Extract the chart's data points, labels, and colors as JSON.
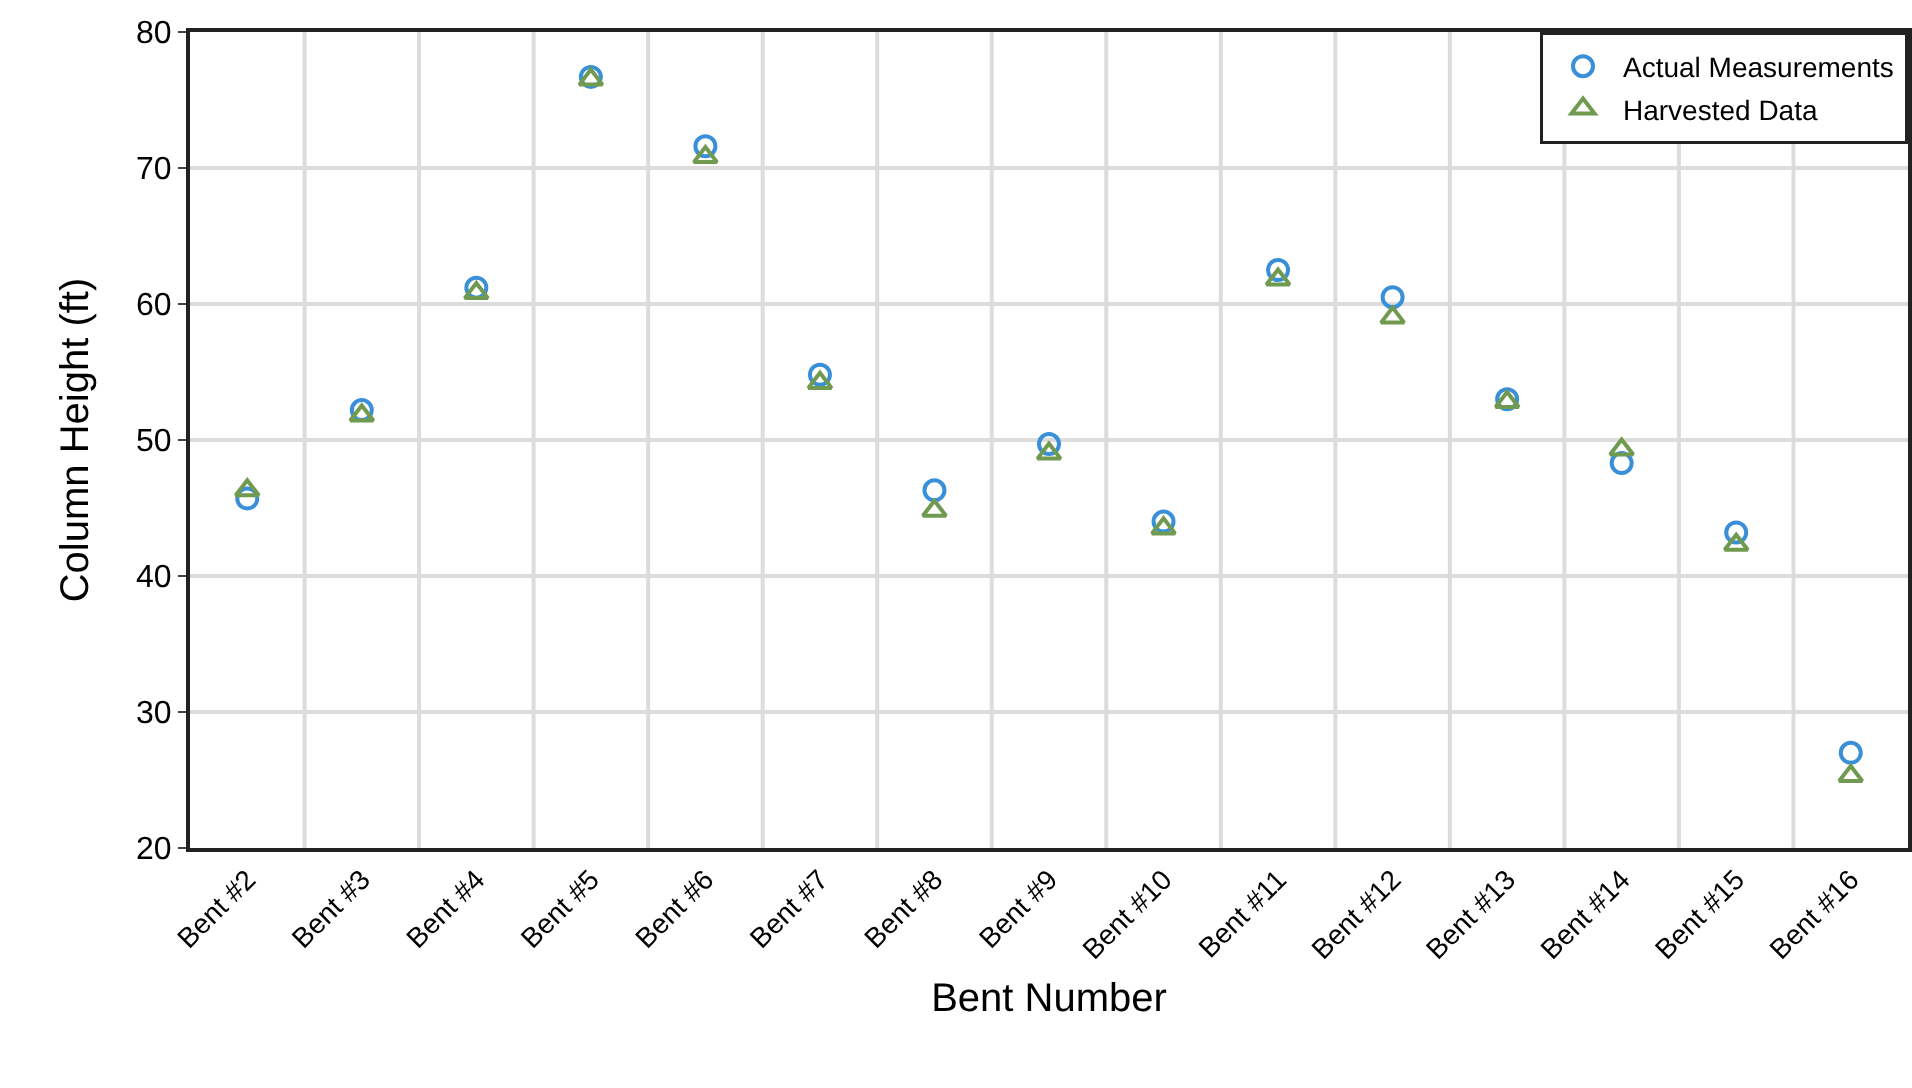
{
  "chart_data": {
    "type": "scatter",
    "xlabel": "Bent Number",
    "ylabel": "Column Height (ft)",
    "categories": [
      "Bent #2",
      "Bent #3",
      "Bent #4",
      "Bent #5",
      "Bent #6",
      "Bent #7",
      "Bent #8",
      "Bent #9",
      "Bent #10",
      "Bent #11",
      "Bent #12",
      "Bent #13",
      "Bent #14",
      "Bent #15",
      "Bent #16"
    ],
    "series": [
      {
        "name": "Actual Measurements",
        "color": "#3a8fd9",
        "marker": "circle",
        "values": [
          45.7,
          52.2,
          61.2,
          76.7,
          71.6,
          54.8,
          46.3,
          49.7,
          44.0,
          62.5,
          60.5,
          53.0,
          48.3,
          43.2,
          27.0
        ]
      },
      {
        "name": "Harvested Data",
        "color": "#6f9a4f",
        "marker": "triangle",
        "values": [
          46.3,
          51.8,
          60.8,
          76.5,
          70.8,
          54.2,
          44.8,
          49.0,
          43.5,
          61.8,
          59.0,
          52.8,
          49.3,
          42.3,
          25.3
        ]
      }
    ],
    "ylim": [
      20,
      80
    ],
    "yticks": [
      20,
      30,
      40,
      50,
      60,
      70,
      80
    ],
    "grid": true,
    "legend": "top right"
  }
}
